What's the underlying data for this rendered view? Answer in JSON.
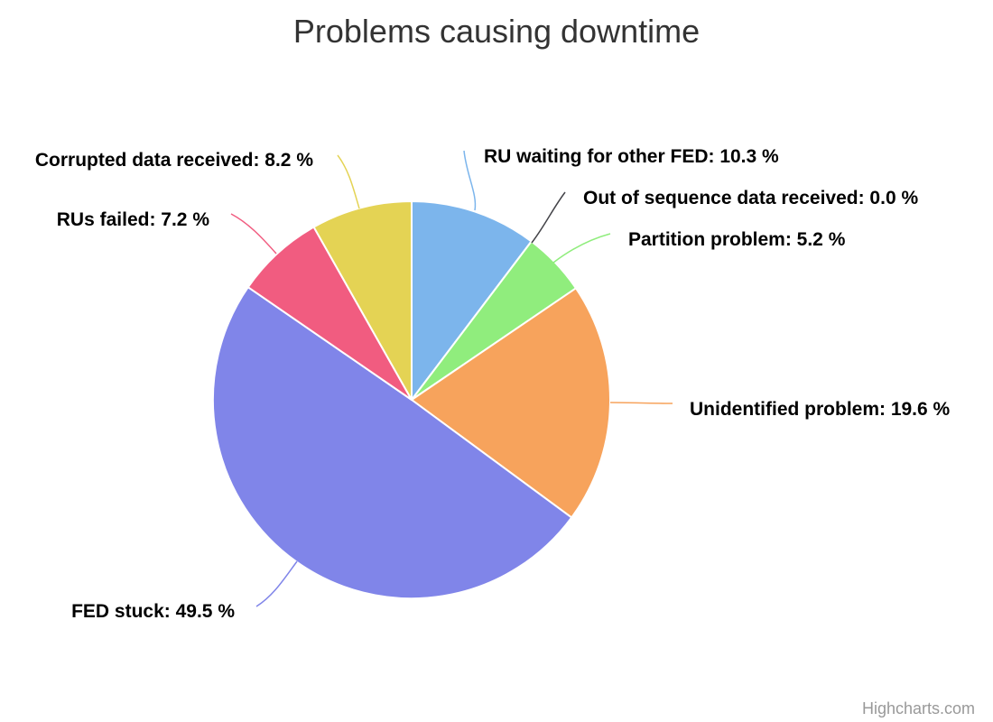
{
  "chart_data": {
    "type": "pie",
    "title": "Problems causing downtime",
    "categories": [
      "RU waiting for other FED",
      "Out of sequence data received",
      "Partition problem",
      "Unidentified problem",
      "FED stuck",
      "RUs failed",
      "Corrupted data received"
    ],
    "values": [
      10.3,
      0.0,
      5.2,
      19.6,
      49.5,
      7.2,
      8.2
    ],
    "colors": [
      "#7cb5ec",
      "#434348",
      "#90ed7d",
      "#f7a35c",
      "#8085e9",
      "#f15c80",
      "#e4d354"
    ],
    "labels": [
      "RU waiting for other FED: 10.3 %",
      "Out of sequence data received: 0.0 %",
      "Partition problem: 5.2 %",
      "Unidentified problem: 19.6 %",
      "FED stuck: 49.5 %",
      "RUs failed: 7.2 %",
      "Corrupted data received: 8.2 %"
    ],
    "start_angle_deg": 0,
    "direction": "clockwise"
  },
  "credits": "Highcharts.com"
}
